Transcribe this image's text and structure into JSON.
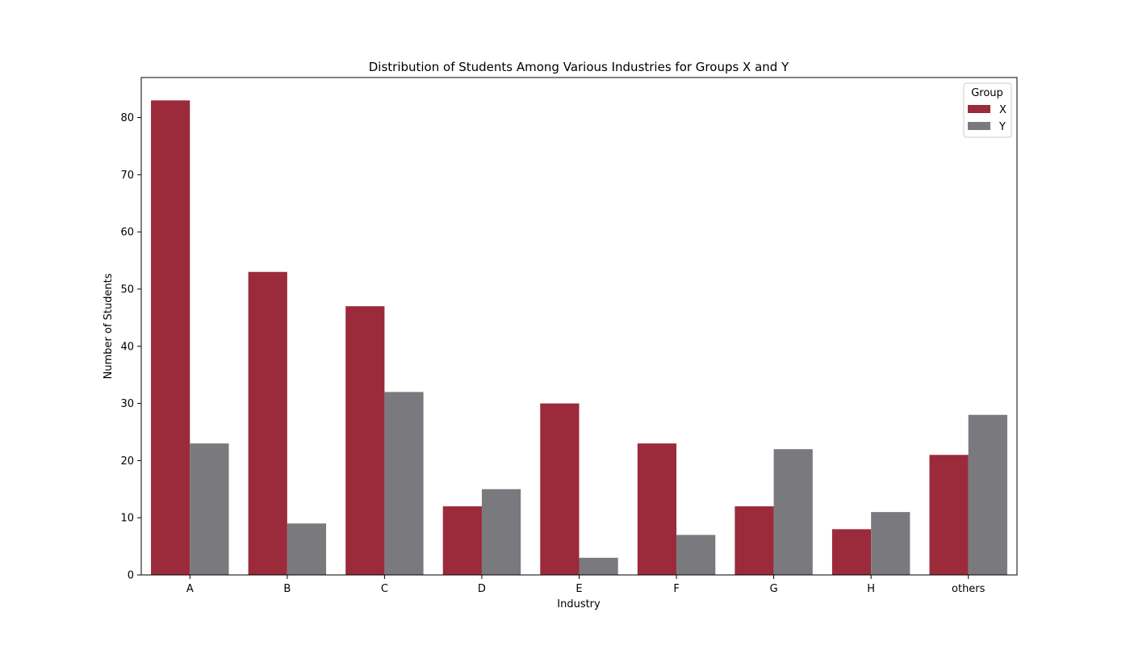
{
  "chart_data": {
    "type": "bar",
    "title": "Distribution of Students Among Various Industries for Groups X and Y",
    "xlabel": "Industry",
    "ylabel": "Number of Students",
    "categories": [
      "A",
      "B",
      "C",
      "D",
      "E",
      "F",
      "G",
      "H",
      "others"
    ],
    "series": [
      {
        "name": "X",
        "color": "#9b2a3a",
        "values": [
          83,
          53,
          47,
          12,
          30,
          23,
          12,
          8,
          21
        ]
      },
      {
        "name": "Y",
        "color": "#7a797e",
        "values": [
          23,
          9,
          32,
          15,
          3,
          7,
          22,
          11,
          28
        ]
      }
    ],
    "ylim": [
      0,
      87
    ],
    "yticks": [
      0,
      10,
      20,
      30,
      40,
      50,
      60,
      70,
      80
    ],
    "legend": {
      "title": "Group",
      "placement": "top-right"
    },
    "grid": false
  }
}
